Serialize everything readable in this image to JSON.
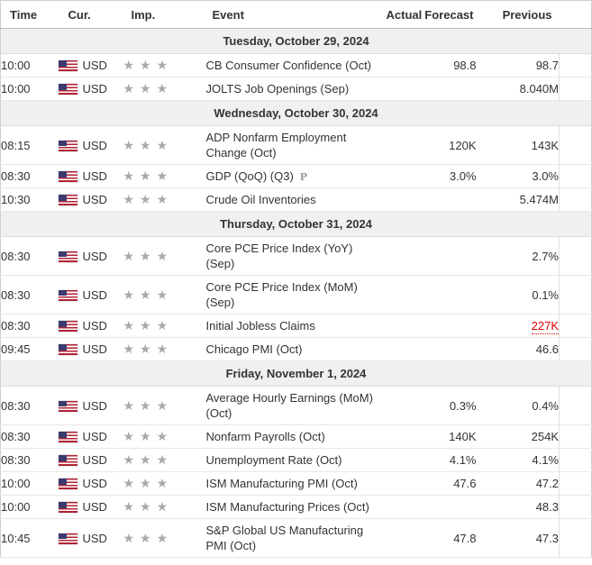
{
  "colors": {
    "alert_value": "#e00000",
    "importance_star": "#a9a9a9",
    "section_band_bg": "#f0f0f0"
  },
  "table": {
    "columns": [
      "Time",
      "Cur.",
      "Imp.",
      "Event",
      "Actual",
      "Forecast",
      "Previous"
    ],
    "sections": [
      {
        "date": "Tuesday, October 29, 2024",
        "rows": [
          {
            "time": "10:00",
            "currency": "USD",
            "flag": "us",
            "importance": 3,
            "event": "CB Consumer Confidence (Oct)",
            "actual": "",
            "forecast": "98.8",
            "previous": "98.7"
          },
          {
            "time": "10:00",
            "currency": "USD",
            "flag": "us",
            "importance": 3,
            "event": "JOLTS Job Openings (Sep)",
            "actual": "",
            "forecast": "",
            "previous": "8.040M"
          }
        ]
      },
      {
        "date": "Wednesday, October 30, 2024",
        "rows": [
          {
            "time": "08:15",
            "currency": "USD",
            "flag": "us",
            "importance": 3,
            "event": "ADP Nonfarm Employment\nChange (Oct)",
            "actual": "",
            "forecast": "120K",
            "previous": "143K"
          },
          {
            "time": "08:30",
            "currency": "USD",
            "flag": "us",
            "importance": 3,
            "event": "GDP (QoQ) (Q3)",
            "marker": "P",
            "actual": "",
            "forecast": "3.0%",
            "previous": "3.0%"
          },
          {
            "time": "10:30",
            "currency": "USD",
            "flag": "us",
            "importance": 3,
            "event": "Crude Oil Inventories",
            "actual": "",
            "forecast": "",
            "previous": "5.474M"
          }
        ]
      },
      {
        "date": "Thursday, October 31, 2024",
        "rows": [
          {
            "time": "08:30",
            "currency": "USD",
            "flag": "us",
            "importance": 3,
            "event": "Core PCE Price Index (YoY)\n(Sep)",
            "actual": "",
            "forecast": "",
            "previous": "2.7%"
          },
          {
            "time": "08:30",
            "currency": "USD",
            "flag": "us",
            "importance": 3,
            "event": "Core PCE Price Index (MoM)\n(Sep)",
            "actual": "",
            "forecast": "",
            "previous": "0.1%"
          },
          {
            "time": "08:30",
            "currency": "USD",
            "flag": "us",
            "importance": 3,
            "event": "Initial Jobless Claims",
            "actual": "",
            "forecast": "",
            "previous": "227K",
            "previous_alert": true
          },
          {
            "time": "09:45",
            "currency": "USD",
            "flag": "us",
            "importance": 3,
            "event": "Chicago PMI (Oct)",
            "actual": "",
            "forecast": "",
            "previous": "46.6"
          }
        ]
      },
      {
        "date": "Friday, November 1, 2024",
        "rows": [
          {
            "time": "08:30",
            "currency": "USD",
            "flag": "us",
            "importance": 3,
            "event": "Average Hourly Earnings (MoM)\n(Oct)",
            "actual": "",
            "forecast": "0.3%",
            "previous": "0.4%"
          },
          {
            "time": "08:30",
            "currency": "USD",
            "flag": "us",
            "importance": 3,
            "event": "Nonfarm Payrolls (Oct)",
            "actual": "",
            "forecast": "140K",
            "previous": "254K"
          },
          {
            "time": "08:30",
            "currency": "USD",
            "flag": "us",
            "importance": 3,
            "event": "Unemployment Rate (Oct)",
            "actual": "",
            "forecast": "4.1%",
            "previous": "4.1%"
          },
          {
            "time": "10:00",
            "currency": "USD",
            "flag": "us",
            "importance": 3,
            "event": "ISM Manufacturing PMI (Oct)",
            "actual": "",
            "forecast": "47.6",
            "previous": "47.2"
          },
          {
            "time": "10:00",
            "currency": "USD",
            "flag": "us",
            "importance": 3,
            "event": "ISM Manufacturing Prices (Oct)",
            "actual": "",
            "forecast": "",
            "previous": "48.3"
          },
          {
            "time": "10:45",
            "currency": "USD",
            "flag": "us",
            "importance": 3,
            "event": "S&P Global US Manufacturing\nPMI (Oct)",
            "actual": "",
            "forecast": "47.8",
            "previous": "47.3"
          }
        ]
      }
    ]
  }
}
